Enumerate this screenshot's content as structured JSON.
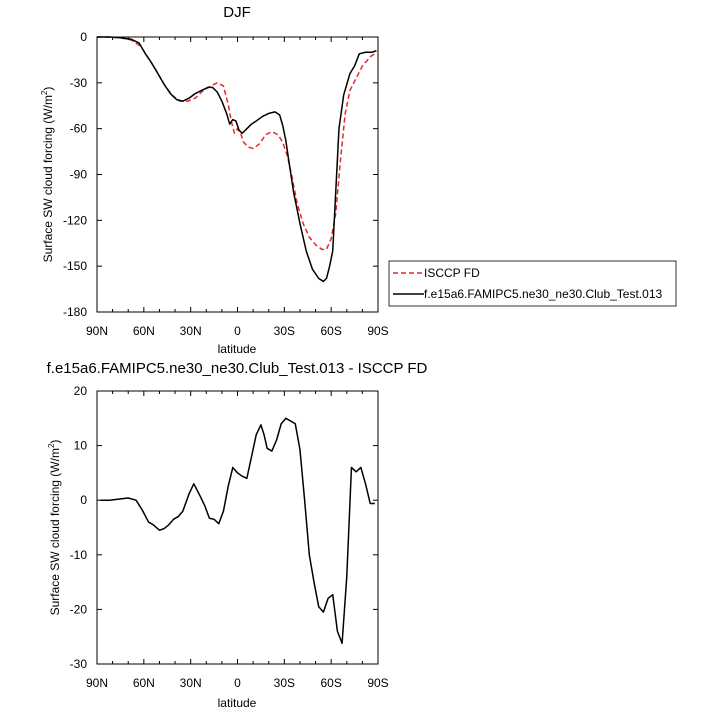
{
  "chart_data": [
    {
      "type": "line",
      "title": "DJF",
      "xlabel": "latitude",
      "ylabel": "Surface SW cloud forcing (W/m",
      "ylabel_sup": "2",
      "ylabel_close": ")",
      "xlim": [
        90,
        -90
      ],
      "ylim": [
        -180,
        0
      ],
      "x_ticks": [
        90,
        60,
        30,
        0,
        -30,
        -60,
        -90
      ],
      "x_tick_labels": [
        "90N",
        "60N",
        "30N",
        "0",
        "30S",
        "60S",
        "90S"
      ],
      "y_ticks": [
        0,
        -30,
        -60,
        -90,
        -120,
        -150,
        -180
      ],
      "y_tick_labels": [
        "0",
        "-30",
        "-60",
        "-90",
        "-120",
        "-150",
        "-180"
      ],
      "legend_position": "right",
      "series": [
        {
          "name": "ISCCP FD",
          "color": "#e8262a",
          "dash": "dashed",
          "x": [
            90,
            82,
            75,
            68,
            62,
            57,
            52,
            47,
            42,
            37,
            32,
            27,
            22,
            17,
            13,
            9,
            6,
            4,
            2,
            0,
            -2,
            -4,
            -7,
            -10,
            -14,
            -18,
            -22,
            -26,
            -29,
            -32,
            -35,
            -38,
            -42,
            -46,
            -50,
            -54,
            -57,
            -60,
            -63,
            -66,
            -69,
            -72,
            -76,
            -80,
            -85,
            -89
          ],
          "values": [
            0,
            0,
            -0.5,
            -2,
            -6,
            -14,
            -22,
            -31,
            -38,
            -42,
            -42,
            -40,
            -35,
            -32,
            -30,
            -32,
            -44,
            -55,
            -63,
            -60,
            -63,
            -69,
            -72,
            -73,
            -70,
            -64,
            -62,
            -64,
            -69,
            -78,
            -92,
            -108,
            -122,
            -131,
            -136,
            -139,
            -139,
            -132,
            -115,
            -80,
            -50,
            -35,
            -27,
            -19,
            -13,
            -10
          ]
        },
        {
          "name": "f.e15a6.FAMIPC5.ne30_ne30.Club_Test.013",
          "color": "#000000",
          "dash": "solid",
          "x": [
            90,
            82,
            75,
            68,
            63,
            59,
            55,
            51,
            47,
            43,
            39,
            35,
            31,
            27,
            23,
            19,
            16,
            13,
            10,
            7,
            5,
            3,
            1,
            -1,
            -3,
            -6,
            -9,
            -12,
            -16,
            -20,
            -24,
            -27,
            -29,
            -31,
            -33,
            -36,
            -40,
            -44,
            -48,
            -52,
            -55,
            -57,
            -59,
            -61,
            -63,
            -65,
            -68,
            -72,
            -75,
            -78,
            -82,
            -86,
            -89
          ],
          "values": [
            0,
            0,
            -0.5,
            -1.5,
            -4,
            -11,
            -17,
            -24,
            -31,
            -37,
            -41,
            -42,
            -40,
            -37,
            -35,
            -33,
            -33,
            -36,
            -42,
            -50,
            -57,
            -54,
            -55,
            -61,
            -63,
            -60,
            -57,
            -55,
            -52,
            -50,
            -49,
            -51,
            -58,
            -68,
            -82,
            -102,
            -122,
            -140,
            -152,
            -158,
            -160,
            -158,
            -150,
            -140,
            -100,
            -60,
            -38,
            -24,
            -19,
            -11,
            -10,
            -10,
            -9
          ]
        }
      ]
    },
    {
      "type": "line",
      "title": "f.e15a6.FAMIPC5.ne30_ne30.Club_Test.013 - ISCCP FD",
      "xlabel": "latitude",
      "ylabel": "Surface SW cloud forcing (W/m",
      "ylabel_sup": "2",
      "ylabel_close": ")",
      "xlim": [
        90,
        -90
      ],
      "ylim": [
        -30,
        20
      ],
      "x_ticks": [
        90,
        60,
        30,
        0,
        -30,
        -60,
        -90
      ],
      "x_tick_labels": [
        "90N",
        "60N",
        "30N",
        "0",
        "30S",
        "60S",
        "90S"
      ],
      "y_ticks": [
        20,
        10,
        0,
        -10,
        -20,
        -30
      ],
      "y_tick_labels": [
        "20",
        "10",
        "0",
        "-10",
        "-20",
        "-30"
      ],
      "series": [
        {
          "color": "#000000",
          "dash": "solid",
          "x": [
            88,
            82,
            76,
            70,
            65,
            61,
            57,
            54,
            50,
            47,
            44,
            41,
            38,
            35,
            31,
            28,
            24,
            21,
            18,
            15,
            12,
            9,
            6,
            3,
            0,
            -3,
            -6,
            -9,
            -12,
            -15,
            -17,
            -19,
            -22,
            -25,
            -28,
            -31,
            -34,
            -37,
            -40,
            -43,
            -46,
            -49,
            -52,
            -55,
            -58,
            -61,
            -64,
            -67,
            -70,
            -73,
            -76,
            -79,
            -82,
            -85,
            -88
          ],
          "values": [
            0,
            0,
            0.2,
            0.4,
            0,
            -1.8,
            -4,
            -4.5,
            -5.5,
            -5.2,
            -4.5,
            -3.5,
            -3,
            -2,
            1.2,
            3,
            0.8,
            -1,
            -3.3,
            -3.5,
            -4.3,
            -2,
            2.5,
            6,
            5,
            4.4,
            4,
            8,
            12,
            13.8,
            12,
            9.5,
            9,
            11,
            14,
            15,
            14.5,
            14,
            9.3,
            0,
            -10,
            -15,
            -19.5,
            -20.5,
            -18,
            -17.3,
            -24,
            -26.2,
            -14,
            6,
            5.2,
            6,
            3,
            -0.6,
            -0.6
          ]
        }
      ]
    }
  ]
}
